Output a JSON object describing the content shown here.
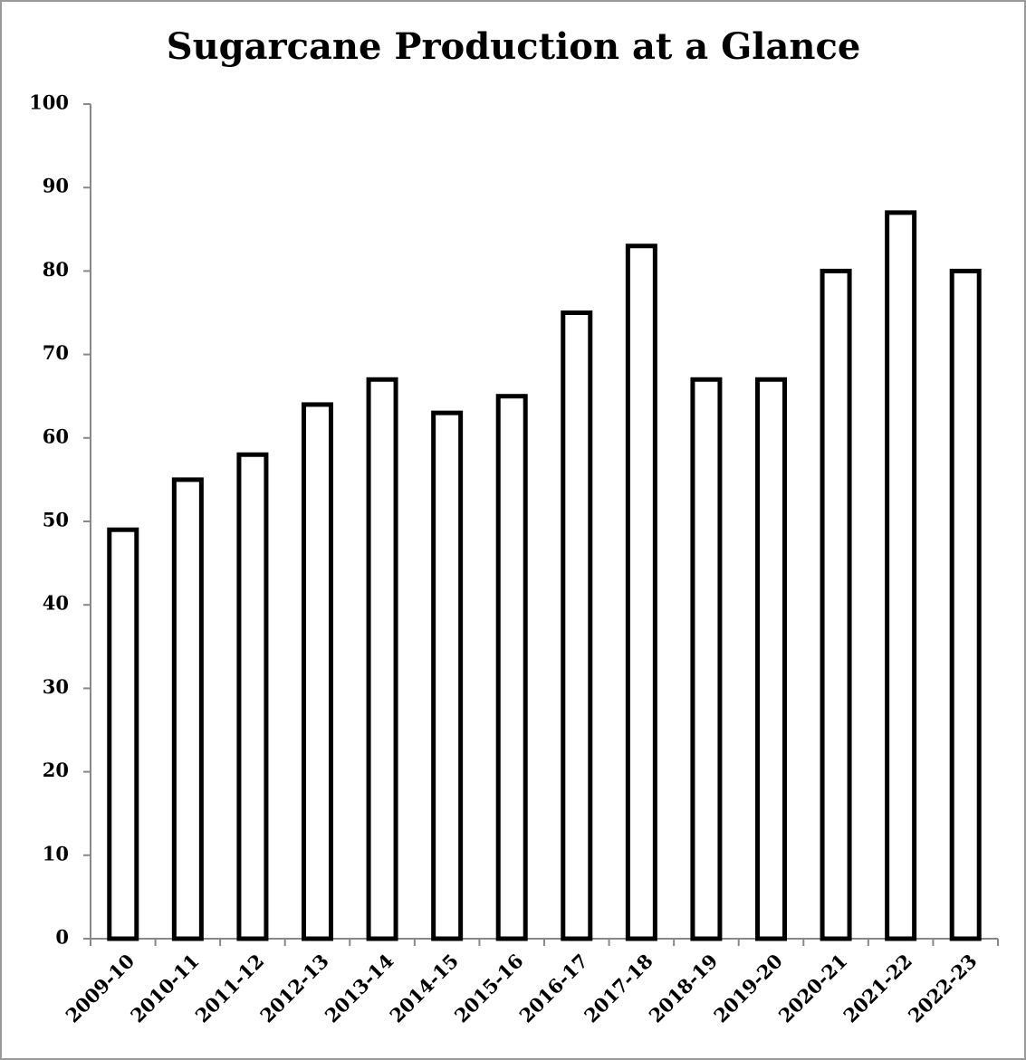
{
  "chart_data": {
    "type": "bar",
    "title": "Sugarcane Production at a Glance",
    "categories": [
      "2009-10",
      "2010-11",
      "2011-12",
      "2012-13",
      "2013-14",
      "2014-15",
      "2015-16",
      "2016-17",
      "2017-18",
      "2018-19",
      "2019-20",
      "2020-21",
      "2021-22",
      "2022-23"
    ],
    "values": [
      49,
      55,
      58,
      64,
      67,
      63,
      65,
      75,
      83,
      67,
      67,
      80,
      87,
      80
    ],
    "color": "#ffffff",
    "edgecolor": "#000000",
    "ylim": [
      0,
      100
    ],
    "yticks": [
      0,
      10,
      20,
      30,
      40,
      50,
      60,
      70,
      80,
      90,
      100
    ],
    "grid": false
  }
}
